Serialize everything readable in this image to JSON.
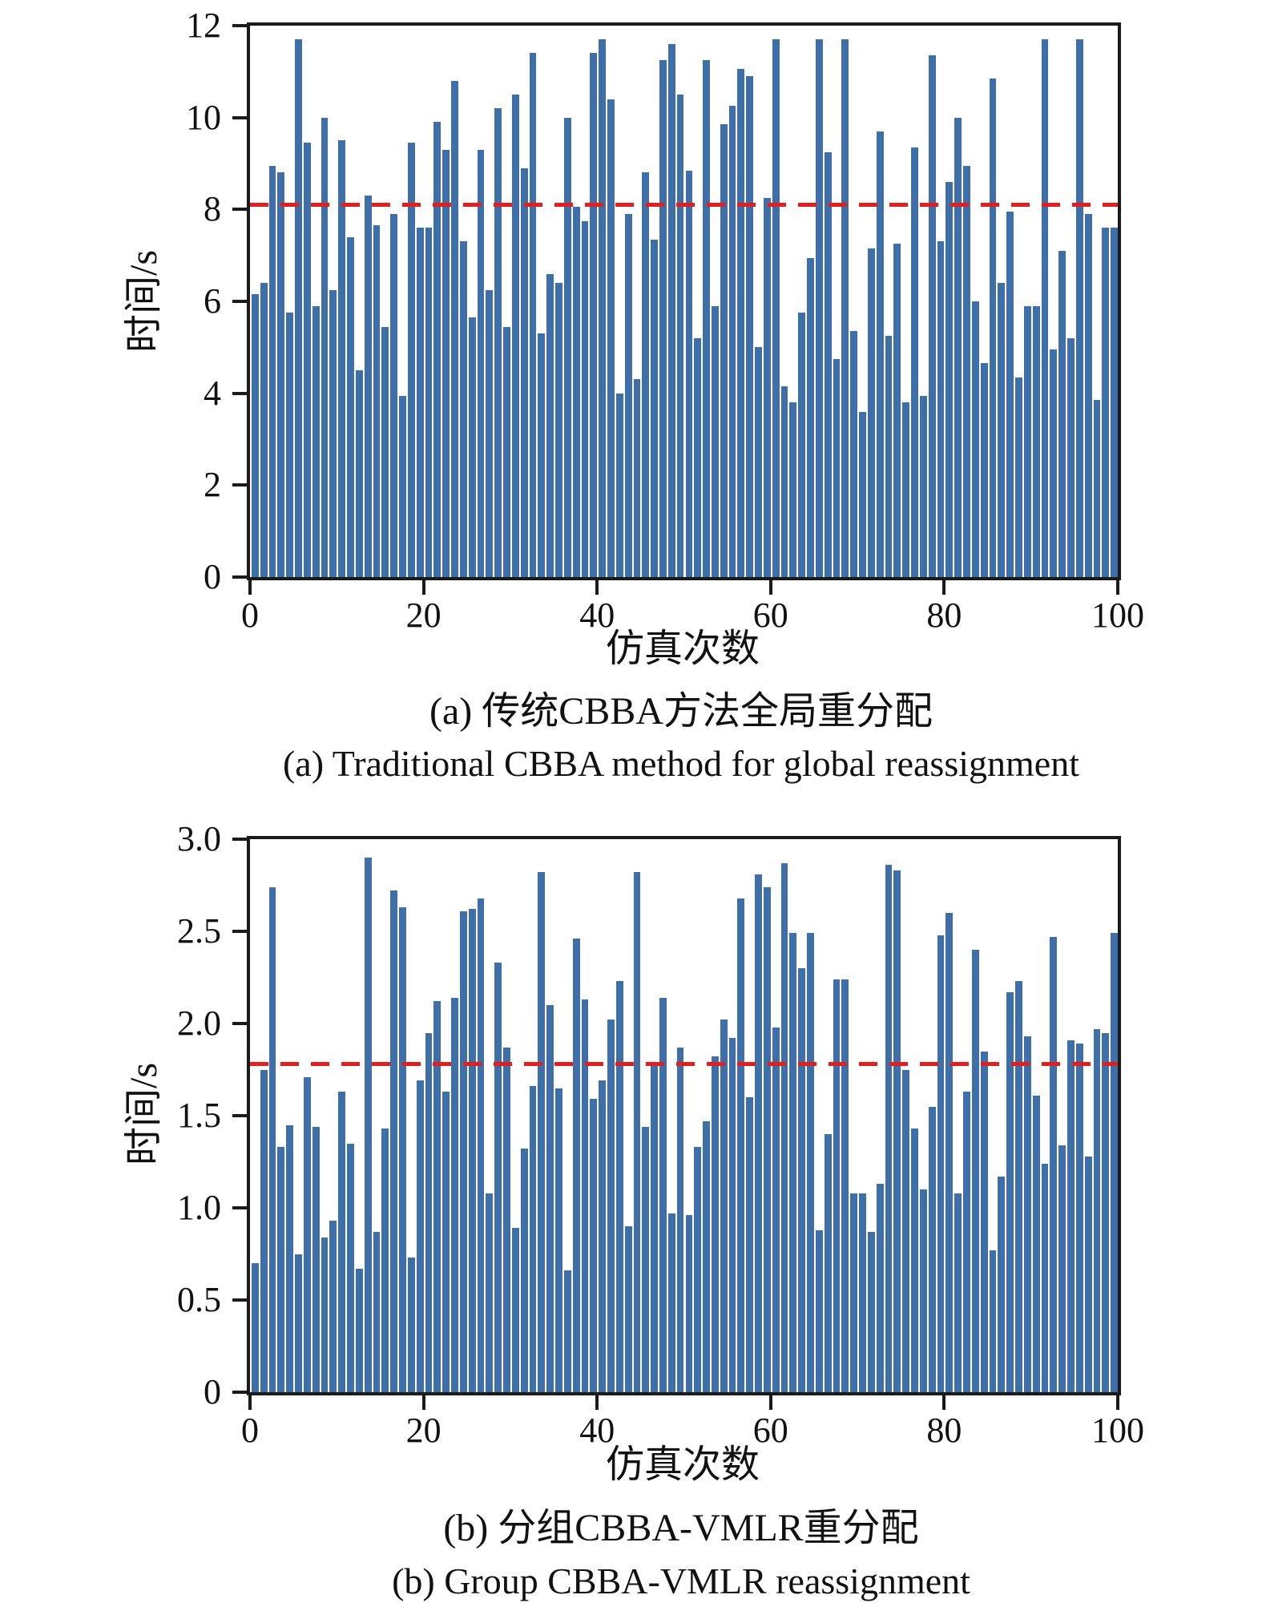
{
  "colors": {
    "bar": "#3E6FA8",
    "mean_line": "#E02020",
    "axis": "#1a1a1a"
  },
  "chart_data": [
    {
      "type": "bar",
      "panel": "a",
      "ylabel": "时间/s",
      "xlabel": "仿真次数",
      "caption_zh": "(a) 传统CBBA方法全局重分配",
      "caption_en": "(a) Traditional CBBA method for global reassignment",
      "xlim": [
        0,
        100
      ],
      "ylim": [
        0,
        12
      ],
      "grid": false,
      "yticks": [
        0,
        2,
        4,
        6,
        8,
        10,
        12
      ],
      "ytick_labels": [
        "0",
        "2",
        "4",
        "6",
        "8",
        "10",
        "12"
      ],
      "xticks": [
        0,
        20,
        40,
        60,
        80,
        100
      ],
      "xtick_labels": [
        "0",
        "20",
        "40",
        "60",
        "80",
        "100"
      ],
      "mean_line": 8.1,
      "x": [
        1,
        2,
        3,
        4,
        5,
        6,
        7,
        8,
        9,
        10,
        11,
        12,
        13,
        14,
        15,
        16,
        17,
        18,
        19,
        20,
        21,
        22,
        23,
        24,
        25,
        26,
        27,
        28,
        29,
        30,
        31,
        32,
        33,
        34,
        35,
        36,
        37,
        38,
        39,
        40,
        41,
        42,
        43,
        44,
        45,
        46,
        47,
        48,
        49,
        50,
        51,
        52,
        53,
        54,
        55,
        56,
        57,
        58,
        59,
        60,
        61,
        62,
        63,
        64,
        65,
        66,
        67,
        68,
        69,
        70,
        71,
        72,
        73,
        74,
        75,
        76,
        77,
        78,
        79,
        80,
        81,
        82,
        83,
        84,
        85,
        86,
        87,
        88,
        89,
        90,
        91,
        92,
        93,
        94,
        95,
        96,
        97,
        98,
        99,
        100
      ],
      "values": [
        6.15,
        6.4,
        8.95,
        8.8,
        5.75,
        11.7,
        9.45,
        5.9,
        10.0,
        6.25,
        9.5,
        7.4,
        4.5,
        8.3,
        7.65,
        5.45,
        7.9,
        3.95,
        9.45,
        7.6,
        7.6,
        9.9,
        9.3,
        10.8,
        7.3,
        5.65,
        9.3,
        6.25,
        10.2,
        5.45,
        10.5,
        8.9,
        11.4,
        5.3,
        6.6,
        6.4,
        10.0,
        8.05,
        7.75,
        11.4,
        11.7,
        10.4,
        4.0,
        7.9,
        4.3,
        8.8,
        7.35,
        11.25,
        11.6,
        10.5,
        8.85,
        5.2,
        11.25,
        5.9,
        9.85,
        10.25,
        11.05,
        10.9,
        5.0,
        8.25,
        11.7,
        4.15,
        3.8,
        5.75,
        6.95,
        11.7,
        9.25,
        4.75,
        11.7,
        5.35,
        3.6,
        7.15,
        9.7,
        5.25,
        7.25,
        3.8,
        9.35,
        3.95,
        11.35,
        7.3,
        8.6,
        10.0,
        8.95,
        6.0,
        4.65,
        10.85,
        6.4,
        7.95,
        4.35,
        5.9,
        5.9,
        11.7,
        4.95,
        7.1,
        5.2,
        11.7,
        7.9,
        3.85,
        7.6,
        7.6
      ]
    },
    {
      "type": "bar",
      "panel": "b",
      "ylabel": "时间/s",
      "xlabel": "仿真次数",
      "caption_zh": "(b) 分组CBBA-VMLR重分配",
      "caption_en": "(b) Group CBBA-VMLR reassignment",
      "xlim": [
        0,
        100
      ],
      "ylim": [
        0,
        3.0
      ],
      "grid": false,
      "yticks": [
        0,
        0.5,
        1.0,
        1.5,
        2.0,
        2.5,
        3.0
      ],
      "ytick_labels": [
        "0",
        "0.5",
        "1.0",
        "1.5",
        "2.0",
        "2.5",
        "3.0"
      ],
      "xticks": [
        0,
        20,
        40,
        60,
        80,
        100
      ],
      "xtick_labels": [
        "0",
        "20",
        "40",
        "60",
        "80",
        "100"
      ],
      "mean_line": 1.78,
      "x": [
        1,
        2,
        3,
        4,
        5,
        6,
        7,
        8,
        9,
        10,
        11,
        12,
        13,
        14,
        15,
        16,
        17,
        18,
        19,
        20,
        21,
        22,
        23,
        24,
        25,
        26,
        27,
        28,
        29,
        30,
        31,
        32,
        33,
        34,
        35,
        36,
        37,
        38,
        39,
        40,
        41,
        42,
        43,
        44,
        45,
        46,
        47,
        48,
        49,
        50,
        51,
        52,
        53,
        54,
        55,
        56,
        57,
        58,
        59,
        60,
        61,
        62,
        63,
        64,
        65,
        66,
        67,
        68,
        69,
        70,
        71,
        72,
        73,
        74,
        75,
        76,
        77,
        78,
        79,
        80,
        81,
        82,
        83,
        84,
        85,
        86,
        87,
        88,
        89,
        90,
        91,
        92,
        93,
        94,
        95,
        96,
        97,
        98,
        99,
        100
      ],
      "values": [
        0.7,
        1.75,
        2.74,
        1.33,
        1.45,
        0.75,
        1.71,
        1.44,
        0.84,
        0.93,
        1.63,
        1.35,
        0.67,
        2.9,
        0.87,
        1.43,
        2.72,
        2.63,
        0.73,
        1.69,
        1.95,
        2.12,
        1.63,
        2.14,
        2.61,
        2.62,
        2.68,
        1.08,
        2.33,
        1.87,
        0.89,
        1.32,
        1.66,
        2.82,
        2.1,
        1.65,
        0.66,
        2.46,
        2.13,
        1.59,
        1.69,
        2.02,
        2.23,
        0.9,
        2.82,
        1.44,
        1.78,
        2.14,
        0.97,
        1.87,
        0.96,
        1.33,
        1.47,
        1.82,
        2.02,
        1.92,
        2.68,
        1.6,
        2.81,
        2.74,
        1.98,
        2.87,
        2.49,
        2.3,
        2.49,
        0.88,
        1.4,
        2.24,
        2.24,
        1.08,
        1.08,
        0.87,
        1.13,
        2.86,
        2.83,
        1.75,
        1.43,
        1.1,
        1.55,
        2.48,
        2.6,
        1.08,
        1.63,
        2.4,
        1.85,
        0.77,
        1.17,
        2.17,
        2.23,
        1.93,
        1.61,
        1.24,
        2.47,
        1.34,
        1.91,
        1.89,
        1.28,
        1.97,
        1.95,
        2.49
      ]
    }
  ]
}
